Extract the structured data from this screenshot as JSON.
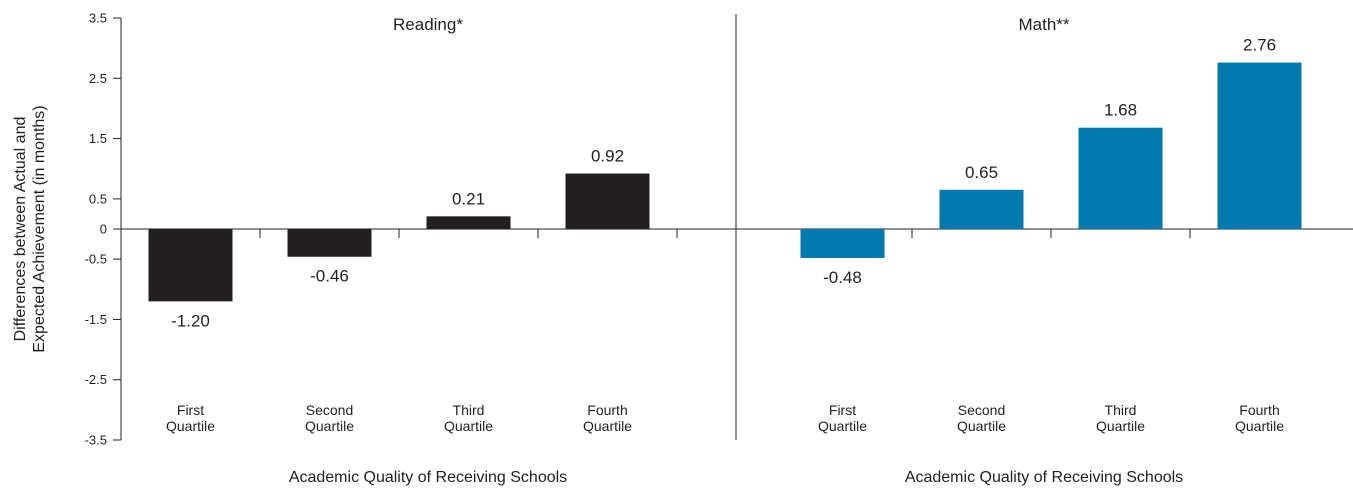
{
  "chart_data": {
    "type": "bar",
    "ylabel": [
      "Differences between Actual and",
      "Expected Achievement (in months)"
    ],
    "ylim": [
      -3.5,
      3.5
    ],
    "yticks": [
      3.5,
      2.5,
      1.5,
      0.5,
      0,
      -0.5,
      -1.5,
      -2.5,
      -3.5
    ],
    "ytick_labels": [
      "3.5",
      "2.5",
      "1.5",
      "0.5",
      "0",
      "-0.5",
      "-1.5",
      "-2.5",
      "-3.5"
    ],
    "grid": false,
    "panels": [
      {
        "title": "Reading*",
        "xlabel": "Academic Quality of Receiving Schools",
        "categories": [
          [
            "First",
            "Quartile"
          ],
          [
            "Second",
            "Quartile"
          ],
          [
            "Third",
            "Quartile"
          ],
          [
            "Fourth",
            "Quartile"
          ]
        ],
        "values": [
          -1.2,
          -0.46,
          0.21,
          0.92
        ],
        "value_labels": [
          "-1.20",
          "-0.46",
          "0.21",
          "0.92"
        ],
        "color": "#231f20"
      },
      {
        "title": "Math**",
        "xlabel": "Academic Quality of Receiving Schools",
        "categories": [
          [
            "First",
            "Quartile"
          ],
          [
            "Second",
            "Quartile"
          ],
          [
            "Third",
            "Quartile"
          ],
          [
            "Fourth",
            "Quartile"
          ]
        ],
        "values": [
          -0.48,
          0.65,
          1.68,
          2.76
        ],
        "value_labels": [
          "-0.48",
          "0.65",
          "1.68",
          "2.76"
        ],
        "color": "#0079ae"
      }
    ]
  }
}
